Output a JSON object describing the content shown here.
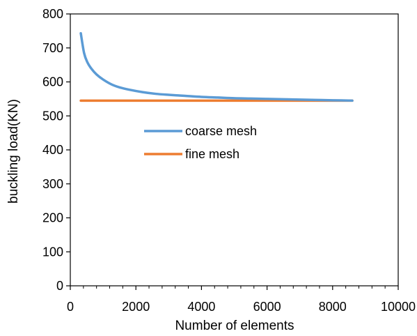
{
  "chart_data": {
    "type": "line",
    "title": "",
    "xlabel": "Number of elements",
    "ylabel": "buckling load(KN)",
    "xlim": [
      0,
      10000
    ],
    "ylim": [
      0,
      800
    ],
    "x_ticks": [
      "0",
      "2000",
      "4000",
      "6000",
      "8000",
      "10000"
    ],
    "y_ticks": [
      "0",
      "100",
      "200",
      "300",
      "400",
      "500",
      "600",
      "700",
      "800"
    ],
    "grid": false,
    "legend_position": "center",
    "series": [
      {
        "name": "coarse mesh",
        "color": "#5b9bd5",
        "x": [
          320,
          420,
          520,
          650,
          800,
          1000,
          1250,
          1500,
          1800,
          2200,
          2600,
          3000,
          3500,
          4000,
          4500,
          5000,
          5500,
          6000,
          6500,
          7000,
          7500,
          8000,
          8600
        ],
        "y": [
          743,
          685,
          658,
          638,
          622,
          607,
          593,
          584,
          577,
          570,
          565,
          562,
          559,
          556,
          554,
          552,
          551,
          550,
          549,
          548,
          547,
          546,
          545
        ]
      },
      {
        "name": "fine mesh",
        "color": "#ed7d31",
        "x": [
          320,
          8600
        ],
        "y": [
          545,
          545
        ]
      }
    ]
  }
}
